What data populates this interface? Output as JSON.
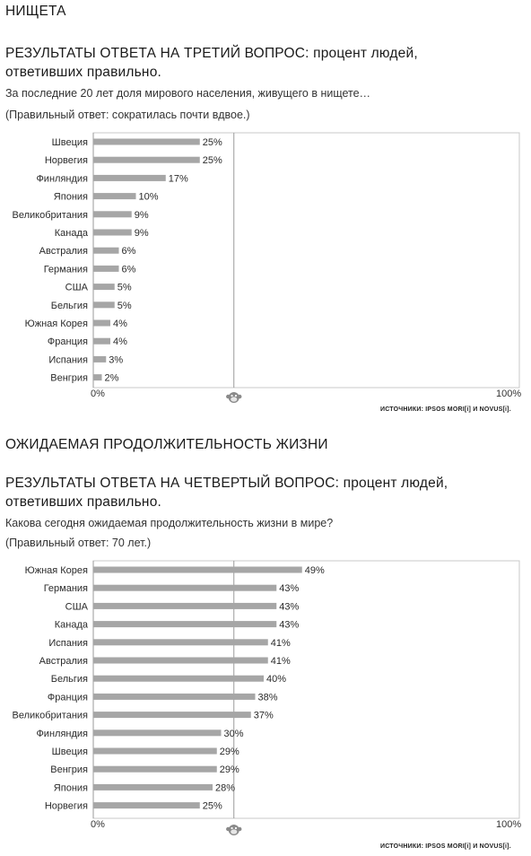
{
  "sections": [
    {
      "section_title": "НИЩЕТА",
      "heading_line1": "РЕЗУЛЬТАТЫ ОТВЕТА НА ТРЕТИЙ ВОПРОС: процент людей,",
      "heading_line2": "ответивших правильно.",
      "question": "За последние 20 лет доля мирового населения, живущего в нищете…",
      "answer": "(Правильный ответ: сократилась почти вдвое.)",
      "axis_min_label": "0%",
      "axis_max_label": "100%",
      "source": "ИСТОЧНИКИ: IPSOS MORI[i] И NOVUS[i]."
    },
    {
      "section_title": "ОЖИДАЕМАЯ ПРОДОЛЖИТЕЛЬНОСТЬ ЖИЗНИ",
      "heading_line1": "РЕЗУЛЬТАТЫ ОТВЕТА НА ЧЕТВЕРТЫЙ ВОПРОС: процент людей,",
      "heading_line2": "ответивших правильно.",
      "question": "Какова сегодня ожидаемая продолжительность жизни в мире?",
      "answer": "(Правильный ответ: 70 лет.)",
      "axis_min_label": "0%",
      "axis_max_label": "100%",
      "source": "ИСТОЧНИКИ: IPSOS MORI[i] И NOVUS[i]."
    }
  ],
  "chart_data": [
    {
      "type": "bar",
      "orientation": "horizontal",
      "categories": [
        "Швеция",
        "Норвегия",
        "Финляндия",
        "Япония",
        "Великобритания",
        "Канада",
        "Австралия",
        "Германия",
        "США",
        "Бельгия",
        "Южная Корея",
        "Франция",
        "Испания",
        "Венгрия"
      ],
      "values": [
        25,
        25,
        17,
        10,
        9,
        9,
        6,
        6,
        5,
        5,
        4,
        4,
        3,
        2
      ],
      "value_labels": [
        "25%",
        "25%",
        "17%",
        "10%",
        "9%",
        "9%",
        "6%",
        "6%",
        "5%",
        "5%",
        "4%",
        "4%",
        "3%",
        "2%"
      ],
      "xlim": [
        0,
        100
      ],
      "reference_line": 33,
      "bar_color": "#a6a6a6",
      "grid": false
    },
    {
      "type": "bar",
      "orientation": "horizontal",
      "categories": [
        "Южная Корея",
        "Германия",
        "США",
        "Канада",
        "Испания",
        "Австралия",
        "Бельгия",
        "Франция",
        "Великобритания",
        "Финляндия",
        "Швеция",
        "Венгрия",
        "Япония",
        "Норвегия"
      ],
      "values": [
        49,
        43,
        43,
        43,
        41,
        41,
        40,
        38,
        37,
        30,
        29,
        29,
        28,
        25
      ],
      "value_labels": [
        "49%",
        "43%",
        "43%",
        "43%",
        "41%",
        "41%",
        "40%",
        "38%",
        "37%",
        "30%",
        "29%",
        "29%",
        "28%",
        "25%"
      ],
      "xlim": [
        0,
        100
      ],
      "reference_line": 33,
      "bar_color": "#a6a6a6",
      "grid": false
    }
  ]
}
